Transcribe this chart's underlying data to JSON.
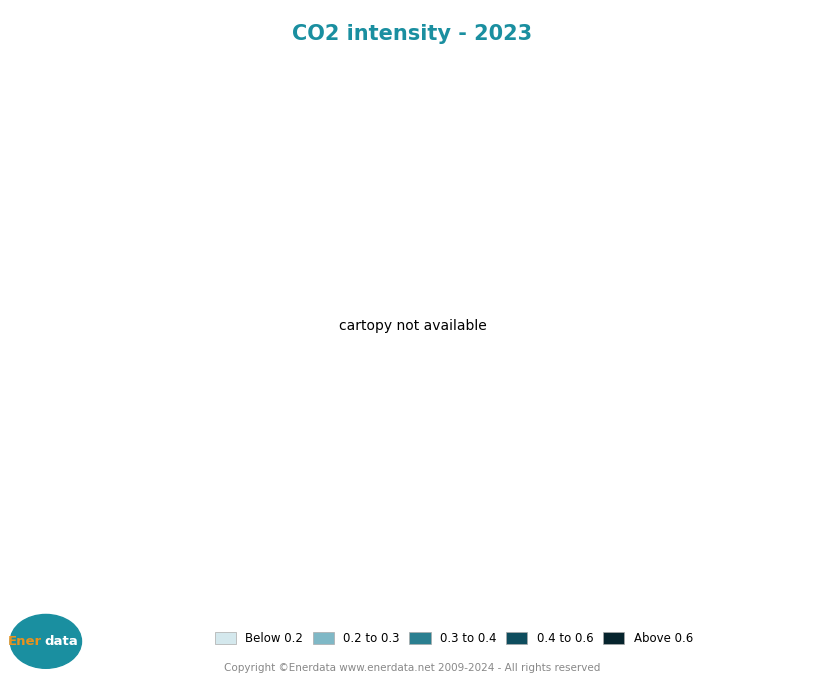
{
  "title": "CO2 intensity - 2023",
  "title_color": "#1a8fa0",
  "title_fontsize": 15,
  "background_color": "#ffffff",
  "legend_labels": [
    "Below 0.2",
    "0.2 to 0.3",
    "0.3 to 0.4",
    "0.4 to 0.6",
    "Above 0.6"
  ],
  "legend_colors": [
    "#d4e8ed",
    "#7fb8c6",
    "#2a7f90",
    "#0e4d5e",
    "#06242d"
  ],
  "copyright_text": "Copyright ©Enerdata www.enerdata.net 2009-2024 - All rights reserved",
  "copyright_color": "#888888",
  "enerdata_circle_color": "#1a8fa0",
  "ener_color": "#e8921e",
  "data_color": "#ffffff",
  "no_data_color": "#e0e8ea",
  "border_color": "#ffffff",
  "country_colors": {
    "Russia": "#06242d",
    "China": "#0e4d5e",
    "Kazakhstan": "#06242d",
    "Uzbekistan": "#06242d",
    "Turkmenistan": "#06242d",
    "Mongolia": "#06242d",
    "South Africa": "#06242d",
    "Kyrgyzstan": "#06242d",
    "North Korea": "#0e4d5e",
    "Tajikistan": "#0e4d5e",
    "Afghanistan": "#0e4d5e",
    "Saudi Arabia": "#0e4d5e",
    "Kuwait": "#0e4d5e",
    "Qatar": "#0e4d5e",
    "United Arab Emirates": "#0e4d5e",
    "Bahrain": "#0e4d5e",
    "Iran": "#2a7f90",
    "Iraq": "#2a7f90",
    "Algeria": "#2a7f90",
    "India": "#0e4d5e",
    "Ukraine": "#2a7f90",
    "Syria": "#2a7f90",
    "Yemen": "#0e4d5e",
    "Oman": "#2a7f90",
    "Georgia": "#2a7f90",
    "Armenia": "#2a7f90",
    "Azerbaijan": "#2a7f90",
    "Moldova": "#2a7f90",
    "Belarus": "#2a7f90",
    "Canada": "#7fb8c6",
    "United States of America": "#7fb8c6",
    "Mexico": "#7fb8c6",
    "Australia": "#7fb8c6",
    "Japan": "#7fb8c6",
    "South Korea": "#7fb8c6",
    "Germany": "#7fb8c6",
    "Poland": "#7fb8c6",
    "United Kingdom": "#7fb8c6",
    "Turkey": "#7fb8c6",
    "Indonesia": "#7fb8c6",
    "Vietnam": "#7fb8c6",
    "Thailand": "#7fb8c6",
    "Malaysia": "#7fb8c6",
    "Philippines": "#7fb8c6",
    "Pakistan": "#7fb8c6",
    "Bangladesh": "#7fb8c6",
    "Egypt": "#7fb8c6",
    "Nigeria": "#7fb8c6",
    "Morocco": "#7fb8c6",
    "Greece": "#7fb8c6",
    "Romania": "#7fb8c6",
    "Bulgaria": "#7fb8c6",
    "Czech Republic": "#7fb8c6",
    "Czechia": "#7fb8c6",
    "Hungary": "#7fb8c6",
    "Slovakia": "#7fb8c6",
    "Serbia": "#7fb8c6",
    "Croatia": "#7fb8c6",
    "Estonia": "#7fb8c6",
    "Latvia": "#7fb8c6",
    "Lithuania": "#7fb8c6",
    "Angola": "#7fb8c6",
    "Botswana": "#7fb8c6",
    "Namibia": "#7fb8c6",
    "Cuba": "#7fb8c6",
    "Libya": "#7fb8c6",
    "Tunisia": "#7fb8c6",
    "Jordan": "#7fb8c6",
    "Lebanon": "#7fb8c6",
    "Israel": "#7fb8c6",
    "Taiwan": "#7fb8c6",
    "Bosnia and Herz.": "#7fb8c6",
    "Bosnia and Herzegovina": "#7fb8c6",
    "North Macedonia": "#7fb8c6",
    "Albania": "#7fb8c6",
    "Montenegro": "#7fb8c6",
    "Kosovo": "#7fb8c6",
    "Greenland": "#d4e8ed",
    "Iceland": "#d4e8ed",
    "Norway": "#d4e8ed",
    "Sweden": "#d4e8ed",
    "Finland": "#d4e8ed",
    "Denmark": "#d4e8ed",
    "Ireland": "#d4e8ed",
    "Portugal": "#d4e8ed",
    "Spain": "#d4e8ed",
    "France": "#d4e8ed",
    "Belgium": "#d4e8ed",
    "Netherlands": "#d4e8ed",
    "Switzerland": "#d4e8ed",
    "Austria": "#d4e8ed",
    "Italy": "#d4e8ed",
    "New Zealand": "#d4e8ed",
    "Brazil": "#d4e8ed",
    "Argentina": "#d4e8ed",
    "Chile": "#d4e8ed",
    "Peru": "#d4e8ed",
    "Colombia": "#d4e8ed",
    "Venezuela": "#d4e8ed",
    "Paraguay": "#d4e8ed",
    "Uruguay": "#d4e8ed",
    "Ecuador": "#d4e8ed",
    "Bolivia": "#d4e8ed",
    "Suriname": "#d4e8ed",
    "Guyana": "#d4e8ed",
    "Panama": "#d4e8ed",
    "Costa Rica": "#d4e8ed",
    "Honduras": "#d4e8ed",
    "Nicaragua": "#d4e8ed",
    "Guatemala": "#d4e8ed",
    "Dem. Rep. Congo": "#d4e8ed",
    "Congo": "#d4e8ed",
    "Gabon": "#d4e8ed",
    "Cameroon": "#d4e8ed",
    "Ethiopia": "#d4e8ed",
    "Kenya": "#d4e8ed",
    "Tanzania": "#d4e8ed",
    "Uganda": "#d4e8ed",
    "Rwanda": "#d4e8ed",
    "Burundi": "#d4e8ed",
    "Madagascar": "#d4e8ed",
    "Mozambique": "#d4e8ed",
    "Zimbabwe": "#d4e8ed",
    "Zambia": "#d4e8ed",
    "Malawi": "#d4e8ed",
    "Ghana": "#d4e8ed",
    "Côte d'Ivoire": "#d4e8ed",
    "Ivory Coast": "#d4e8ed",
    "Senegal": "#d4e8ed",
    "Mali": "#d4e8ed",
    "Burkina Faso": "#d4e8ed",
    "Guinea": "#d4e8ed",
    "Sierra Leone": "#d4e8ed",
    "Liberia": "#d4e8ed",
    "Togo": "#d4e8ed",
    "Benin": "#d4e8ed",
    "Central African Rep.": "#d4e8ed",
    "Chad": "#d4e8ed",
    "Sudan": "#d4e8ed",
    "S. Sudan": "#d4e8ed",
    "Somalia": "#d4e8ed",
    "Eritrea": "#d4e8ed",
    "Djibouti": "#d4e8ed",
    "Nepal": "#d4e8ed",
    "Bhutan": "#d4e8ed",
    "Sri Lanka": "#d4e8ed",
    "Myanmar": "#d4e8ed",
    "Papua New Guinea": "#d4e8ed",
    "Fiji": "#d4e8ed",
    "Vanuatu": "#d4e8ed",
    "Solomon Is.": "#d4e8ed",
    "Cambodia": "#d4e8ed",
    "Laos": "#d4e8ed",
    "Lao PDR": "#d4e8ed"
  }
}
